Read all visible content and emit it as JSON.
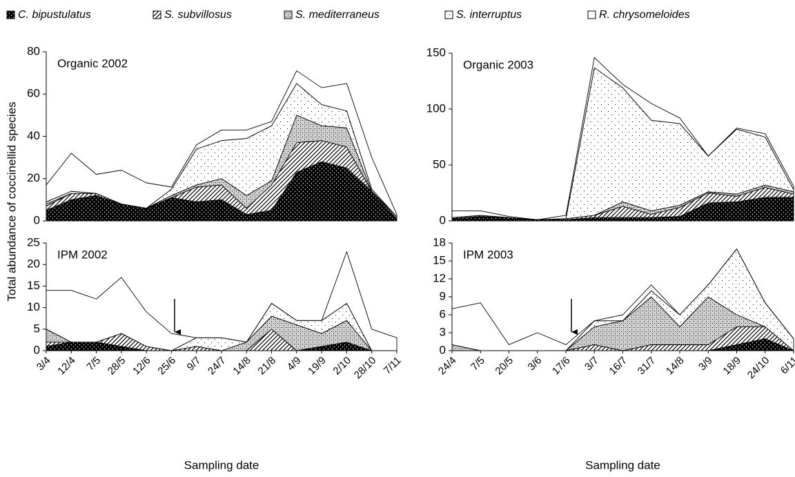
{
  "chart_data": [
    {
      "type": "stacked-area",
      "title": "Organic 2002",
      "ylabel": "Total abundance of coccinellid species",
      "categories": [
        null,
        null,
        null,
        null,
        null,
        null,
        null,
        null,
        null,
        null,
        null,
        null,
        null,
        null,
        null
      ],
      "ylim": [
        0,
        80
      ],
      "yticks": [
        0,
        20,
        40,
        60,
        80
      ],
      "series": [
        {
          "name": "C. bipustulatus",
          "color": "#000000",
          "pattern": "dots-on-dark",
          "values": [
            5,
            10,
            12,
            8,
            6,
            11,
            9,
            10,
            3,
            5,
            23,
            28,
            25,
            14,
            1
          ]
        },
        {
          "name": "S. subvillosus",
          "color": "#ffffff",
          "pattern": "hatch",
          "values": [
            2,
            3,
            1,
            0,
            0,
            0,
            7,
            7,
            3,
            12,
            14,
            10,
            10,
            0,
            0
          ]
        },
        {
          "name": "S. mediterraneus",
          "color": "#d0d0d0",
          "pattern": "dense-dots",
          "values": [
            1,
            0,
            0,
            0,
            0,
            1,
            1,
            3,
            6,
            2,
            13,
            7,
            9,
            0,
            1
          ]
        },
        {
          "name": "S. interruptus",
          "color": "#ffffff",
          "pattern": "sparse-dots",
          "values": [
            1,
            1,
            0,
            0,
            0,
            3,
            17,
            18,
            27,
            26,
            15,
            10,
            8,
            1,
            0
          ]
        },
        {
          "name": "R. chrysomeloides",
          "color": "#ffffff",
          "pattern": "plain",
          "values": [
            8,
            18,
            9,
            16,
            12,
            1,
            2,
            5,
            4,
            2,
            6,
            8,
            13,
            15,
            1
          ]
        }
      ]
    },
    {
      "type": "stacked-area",
      "title": "IPM 2002",
      "xlabel": "Sampling date",
      "categories": [
        "3/4",
        "12/4",
        "7/5",
        "28/5",
        "12/6",
        "25/6",
        "9/7",
        "24/7",
        "14/8",
        "21/8",
        "4/9",
        "19/9",
        "2/10",
        "28/10",
        "7/11"
      ],
      "ylim": [
        0,
        25
      ],
      "yticks": [
        0,
        5,
        10,
        15,
        20,
        25
      ],
      "series": [
        {
          "color": "#000000",
          "pattern": "dots-on-dark",
          "values": [
            1,
            2,
            2,
            1,
            0,
            0,
            0,
            0,
            0,
            0,
            0,
            1,
            2,
            0,
            0
          ]
        },
        {
          "color": "#ffffff",
          "pattern": "hatch",
          "values": [
            1,
            0,
            0,
            3,
            1,
            0,
            1,
            0,
            0,
            5,
            0,
            0,
            0,
            0,
            0
          ]
        },
        {
          "color": "#d0d0d0",
          "pattern": "dense-dots",
          "values": [
            3,
            0,
            0,
            0,
            0,
            0,
            0,
            0,
            2,
            3,
            6,
            3,
            5,
            0,
            0
          ]
        },
        {
          "color": "#ffffff",
          "pattern": "sparse-dots",
          "values": [
            0,
            0,
            0,
            0,
            0,
            0,
            2,
            3,
            0,
            3,
            1,
            3,
            4,
            0,
            0
          ]
        },
        {
          "color": "#ffffff",
          "pattern": "plain",
          "values": [
            9,
            12,
            10,
            13,
            8,
            4,
            0,
            0,
            0,
            0,
            0,
            0,
            12,
            5,
            3
          ]
        }
      ]
    },
    {
      "type": "stacked-area",
      "title": "Organic 2003",
      "categories": [
        null,
        null,
        null,
        null,
        null,
        null,
        null,
        null,
        null,
        null,
        null,
        null,
        null
      ],
      "ylim": [
        0,
        150
      ],
      "yticks": [
        0,
        50,
        100,
        150
      ],
      "series": [
        {
          "color": "#000000",
          "pattern": "dots-on-dark",
          "values": [
            2,
            4,
            3,
            1,
            1,
            3,
            3,
            3,
            4,
            16,
            17,
            21,
            21
          ]
        },
        {
          "color": "#ffffff",
          "pattern": "hatch",
          "values": [
            1,
            1,
            0,
            0,
            1,
            2,
            10,
            3,
            8,
            9,
            5,
            9,
            3
          ]
        },
        {
          "color": "#d0d0d0",
          "pattern": "dense-dots",
          "values": [
            0,
            0,
            0,
            0,
            0,
            0,
            4,
            3,
            2,
            1,
            2,
            2,
            2
          ]
        },
        {
          "color": "#ffffff",
          "pattern": "sparse-dots",
          "values": [
            0,
            0,
            0,
            0,
            0,
            132,
            102,
            81,
            73,
            32,
            58,
            43,
            2
          ]
        },
        {
          "color": "#ffffff",
          "pattern": "plain",
          "values": [
            6,
            4,
            1,
            0,
            3,
            9,
            3,
            15,
            5,
            0,
            1,
            3,
            3
          ]
        }
      ]
    },
    {
      "type": "stacked-area",
      "title": "IPM 2003",
      "xlabel": "Sampling date",
      "categories": [
        "24/4",
        "7/5",
        "20/5",
        "3/6",
        "17/6",
        "3/7",
        "16/7",
        "31/7",
        "14/8",
        "3/9",
        "18/9",
        "24/10",
        "6/11"
      ],
      "ylim": [
        0,
        18
      ],
      "yticks": [
        0,
        3,
        6,
        9,
        12,
        15,
        18
      ],
      "series": [
        {
          "color": "#000000",
          "pattern": "dots-on-dark",
          "values": [
            0,
            0,
            0,
            0,
            0,
            0,
            0,
            0,
            0,
            0,
            1,
            2,
            0
          ]
        },
        {
          "color": "#ffffff",
          "pattern": "hatch",
          "values": [
            0,
            0,
            0,
            0,
            0,
            1,
            0,
            1,
            1,
            1,
            3,
            2,
            0
          ]
        },
        {
          "color": "#d0d0d0",
          "pattern": "dense-dots",
          "values": [
            1,
            0,
            0,
            0,
            0,
            3,
            5,
            8,
            3,
            8,
            2,
            0,
            0
          ]
        },
        {
          "color": "#ffffff",
          "pattern": "sparse-dots",
          "values": [
            0,
            0,
            0,
            0,
            0,
            1,
            0,
            1,
            2,
            2,
            11,
            4,
            2
          ]
        },
        {
          "color": "#ffffff",
          "pattern": "plain",
          "values": [
            6,
            8,
            1,
            3,
            1,
            0,
            1,
            1,
            0,
            0,
            0,
            0,
            0
          ]
        }
      ]
    }
  ]
}
